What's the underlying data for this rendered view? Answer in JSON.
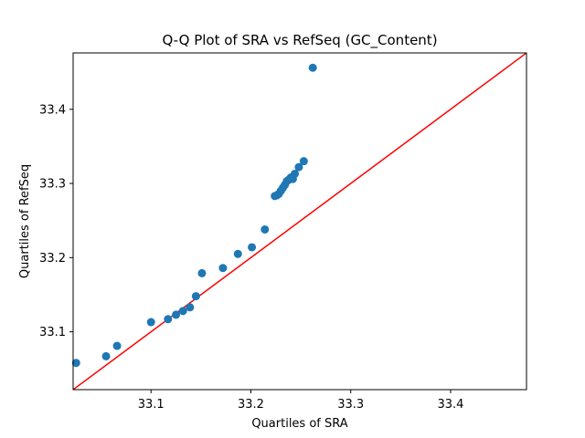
{
  "chart_data": {
    "type": "scatter",
    "title": "Q-Q Plot of SRA vs RefSeq (GC_Content)",
    "xlabel": "Quartiles of SRA",
    "ylabel": "Quartiles of RefSeq",
    "xlim": [
      33.022,
      33.476
    ],
    "ylim": [
      33.022,
      33.476
    ],
    "xticks": [
      "33.1",
      "33.2",
      "33.3",
      "33.4"
    ],
    "yticks": [
      "33.1",
      "33.2",
      "33.3",
      "33.4"
    ],
    "grid": false,
    "point_color": "#1f77b4",
    "reference_line": {
      "color": "#ff0000",
      "slope": 1,
      "intercept": 0
    },
    "points": [
      {
        "x": 33.025,
        "y": 33.058
      },
      {
        "x": 33.055,
        "y": 33.067
      },
      {
        "x": 33.066,
        "y": 33.081
      },
      {
        "x": 33.1,
        "y": 33.113
      },
      {
        "x": 33.117,
        "y": 33.117
      },
      {
        "x": 33.125,
        "y": 33.123
      },
      {
        "x": 33.132,
        "y": 33.128
      },
      {
        "x": 33.139,
        "y": 33.133
      },
      {
        "x": 33.145,
        "y": 33.148
      },
      {
        "x": 33.151,
        "y": 33.179
      },
      {
        "x": 33.172,
        "y": 33.186
      },
      {
        "x": 33.187,
        "y": 33.205
      },
      {
        "x": 33.201,
        "y": 33.214
      },
      {
        "x": 33.214,
        "y": 33.238
      },
      {
        "x": 33.224,
        "y": 33.283
      },
      {
        "x": 33.226,
        "y": 33.284
      },
      {
        "x": 33.228,
        "y": 33.286
      },
      {
        "x": 33.23,
        "y": 33.29
      },
      {
        "x": 33.232,
        "y": 33.294
      },
      {
        "x": 33.234,
        "y": 33.298
      },
      {
        "x": 33.236,
        "y": 33.303
      },
      {
        "x": 33.238,
        "y": 33.305
      },
      {
        "x": 33.24,
        "y": 33.308
      },
      {
        "x": 33.242,
        "y": 33.306
      },
      {
        "x": 33.244,
        "y": 33.313
      },
      {
        "x": 33.248,
        "y": 33.322
      },
      {
        "x": 33.253,
        "y": 33.33
      },
      {
        "x": 33.262,
        "y": 33.456
      }
    ]
  }
}
